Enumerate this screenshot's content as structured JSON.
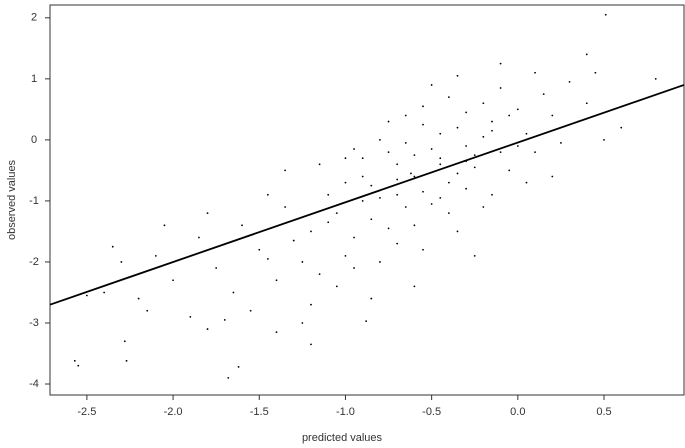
{
  "chart_data": {
    "type": "scatter",
    "xlabel": "predicted values",
    "ylabel": "observed values",
    "color": "#000000",
    "xlim": [
      -2.714,
      0.964
    ],
    "ylim": [
      -4.18,
      2.21
    ],
    "xticks": [
      -2.5,
      {
        "value": -2,
        "label": "-2.0"
      },
      -1.5,
      {
        "value": -1,
        "label": "-1.0"
      },
      -0.5,
      {
        "value": 0,
        "label": "0.0"
      },
      0.5
    ],
    "yticks": [
      -4,
      -3,
      -2,
      -1,
      0,
      1,
      2
    ],
    "x": [
      -0.62,
      -0.45,
      -0.8,
      -0.3,
      -1.05,
      -0.55,
      -0.7,
      -0.2,
      -0.9,
      -0.4,
      -1.2,
      -0.1,
      -0.65,
      -0.35,
      -0.85,
      -0.5,
      -1.0,
      -0.25,
      -0.75,
      -0.15,
      -1.35,
      -0.6,
      -0.45,
      -0.95,
      0.05,
      -0.3,
      -1.1,
      -0.55,
      -0.7,
      0.1,
      -1.5,
      -0.4,
      -0.8,
      0.2,
      -1.25,
      -0.05,
      -0.9,
      -0.35,
      -1.6,
      -0.65,
      0.25,
      -1.0,
      -0.2,
      -1.4,
      -0.5,
      -0.85,
      0.0,
      -1.15,
      -0.3,
      -1.75,
      -0.6,
      -0.15,
      -1.3,
      -0.45,
      0.35,
      -1.85,
      -0.75,
      -0.1,
      -1.05,
      -0.25,
      -2.0,
      -0.55,
      -0.95,
      0.15,
      -1.45,
      -0.35,
      -2.1,
      -0.7,
      0.3,
      -1.2,
      -0.4,
      -1.65,
      -0.8,
      0.05,
      -2.2,
      -0.6,
      -1.9,
      -0.5,
      -1.35,
      0.4,
      -2.3,
      -0.9,
      -0.2,
      -1.55,
      -0.65,
      -2.4,
      -0.3,
      -1.1,
      0.45,
      -1.8,
      -0.15,
      -2.15,
      -0.45,
      -0.85,
      0.5,
      -1.0,
      -2.05,
      -0.75,
      -1.25,
      0.0,
      -0.55,
      -1.7,
      -0.35,
      -0.95,
      0.2,
      -1.45,
      -2.5,
      -0.05,
      -0.7,
      -1.15,
      0.51,
      -2.57,
      -2.55,
      -1.68,
      -1.62,
      -2.27,
      -0.88,
      -1.2,
      -2.28,
      -0.1,
      0.4,
      0.8,
      0.6,
      -1.4,
      -2.35,
      -1.8,
      -0.25,
      0.1,
      -0.6
    ],
    "values": [
      -0.55,
      -0.3,
      -0.95,
      -0.1,
      -1.2,
      -0.85,
      -0.4,
      0.05,
      -0.6,
      -0.7,
      -1.5,
      -0.2,
      -1.1,
      0.2,
      -1.3,
      -0.15,
      -0.7,
      -0.45,
      -0.2,
      0.3,
      -1.1,
      -1.4,
      0.1,
      -1.6,
      0.1,
      -0.8,
      -0.9,
      0.25,
      -1.7,
      -0.2,
      -1.8,
      -1.2,
      0.0,
      0.4,
      -2.0,
      -0.5,
      -0.3,
      -0.55,
      -1.4,
      -0.05,
      -0.05,
      -1.9,
      0.6,
      -2.3,
      -1.05,
      -0.75,
      0.5,
      -0.4,
      0.45,
      -2.1,
      -0.25,
      -0.9,
      -1.65,
      -0.95,
      0.3,
      -1.6,
      -1.45,
      0.85,
      -2.4,
      -0.25,
      -2.3,
      0.55,
      -0.15,
      0.75,
      -0.9,
      -1.5,
      -1.9,
      -0.65,
      0.95,
      -2.7,
      0.7,
      -2.5,
      -2.0,
      -0.7,
      -2.6,
      -0.6,
      -2.9,
      0.9,
      -0.5,
      0.6,
      -2.0,
      -1.0,
      -1.1,
      -2.8,
      0.4,
      -2.5,
      -0.35,
      -1.35,
      1.1,
      -1.2,
      0.15,
      -2.8,
      -0.4,
      -2.6,
      0.0,
      -0.3,
      -1.4,
      0.3,
      -3.0,
      -0.1,
      -1.8,
      -2.95,
      1.05,
      -2.1,
      -0.6,
      -1.95,
      -2.55,
      0.4,
      -0.9,
      -2.2,
      2.05,
      -3.62,
      -3.7,
      -3.9,
      -3.72,
      -3.62,
      -2.97,
      -3.35,
      -3.3,
      1.25,
      1.4,
      1.0,
      0.2,
      -3.15,
      -1.75,
      -3.1,
      -1.9,
      1.1,
      -2.4
    ],
    "fit_line": {
      "x": [
        -2.714,
        0.964
      ],
      "values": [
        -2.7,
        0.9
      ]
    }
  }
}
